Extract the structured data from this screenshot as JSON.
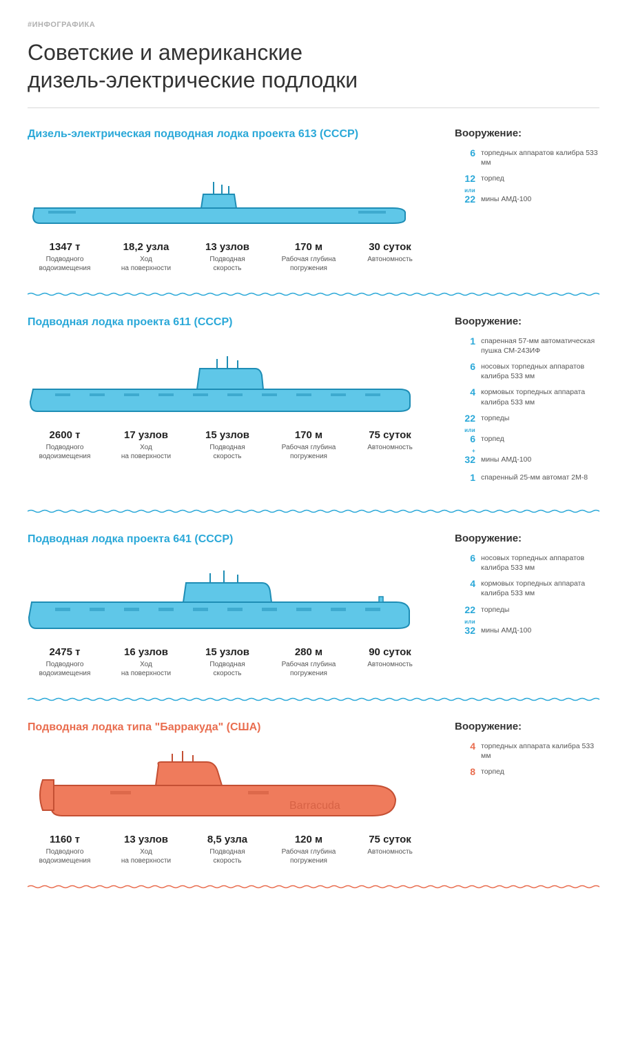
{
  "tag": "#ИНФОГРАФИКА",
  "title": "Советские и американские\nдизель-электрические подлодки",
  "colors": {
    "ussr_title": "#2aa8d8",
    "ussr_fill": "#5fc7e8",
    "ussr_stroke": "#1e8db5",
    "usa_title": "#e96d4f",
    "usa_fill": "#ef7b5c",
    "usa_stroke": "#c44f33",
    "text_dark": "#333333",
    "text_mid": "#555555",
    "wave_ussr": "#2aa8d8",
    "wave_usa": "#e96d4f"
  },
  "stat_labels": [
    "Подводного\nводоизмещения",
    "Ход\nна поверхности",
    "Подводная\nскорость",
    "Рабочая глубина\nпогружения",
    "Автономность"
  ],
  "arm_heading": "Вооружение:",
  "subs": [
    {
      "title": "Дизель-электрическая подводная лодка проекта 613 (СССР)",
      "side": "ussr",
      "stats": [
        "1347 т",
        "18,2 узла",
        "13 узлов",
        "170 м",
        "30 суток"
      ],
      "armament": [
        {
          "n": "6",
          "t": "торпедных аппаратов калибра 533 мм"
        },
        {
          "n": "12",
          "t": "торпед"
        },
        {
          "conj": "или"
        },
        {
          "n": "22",
          "t": "мины АМД-100"
        }
      ],
      "svg_variant": 0,
      "wave_after": "ussr"
    },
    {
      "title": "Подводная лодка проекта 611 (СССР)",
      "side": "ussr",
      "stats": [
        "2600 т",
        "17 узлов",
        "15 узлов",
        "170 м",
        "75 суток"
      ],
      "armament": [
        {
          "n": "1",
          "t": "спаренная 57-мм автоматическая пушка СМ-24ЗИФ"
        },
        {
          "n": "6",
          "t": "носовых торпедных аппаратов калибра 533 мм"
        },
        {
          "n": "4",
          "t": "кормовых торпедных аппарата калибра 533 мм"
        },
        {
          "n": "22",
          "t": "торпеды"
        },
        {
          "conj": "или"
        },
        {
          "n": "6",
          "t": "торпед"
        },
        {
          "conj": "+"
        },
        {
          "n": "32",
          "t": "мины АМД-100"
        },
        {
          "n": "1",
          "t": "спаренный 25-мм автомат 2М-8"
        }
      ],
      "svg_variant": 1,
      "wave_after": "ussr"
    },
    {
      "title": "Подводная лодка проекта 641 (СССР)",
      "side": "ussr",
      "stats": [
        "2475 т",
        "16 узлов",
        "15 узлов",
        "280 м",
        "90 суток"
      ],
      "armament": [
        {
          "n": "6",
          "t": "носовых торпедных аппаратов калибра 533 мм"
        },
        {
          "n": "4",
          "t": "кормовых торпедных аппарата калибра 533 мм"
        },
        {
          "n": "22",
          "t": "торпеды"
        },
        {
          "conj": "или"
        },
        {
          "n": "32",
          "t": "мины АМД-100"
        }
      ],
      "svg_variant": 2,
      "wave_after": "ussr"
    },
    {
      "title": "Подводная лодка типа \"Барракуда\" (США)",
      "side": "usa",
      "stats": [
        "1160 т",
        "13 узлов",
        "8,5 узла",
        "120 м",
        "75 суток"
      ],
      "armament": [
        {
          "n": "4",
          "t": "торпедных аппарата калибра 533 мм"
        },
        {
          "n": "8",
          "t": "торпед"
        }
      ],
      "svg_variant": 3,
      "hull_text": "Barracuda",
      "wave_after": "usa"
    }
  ]
}
